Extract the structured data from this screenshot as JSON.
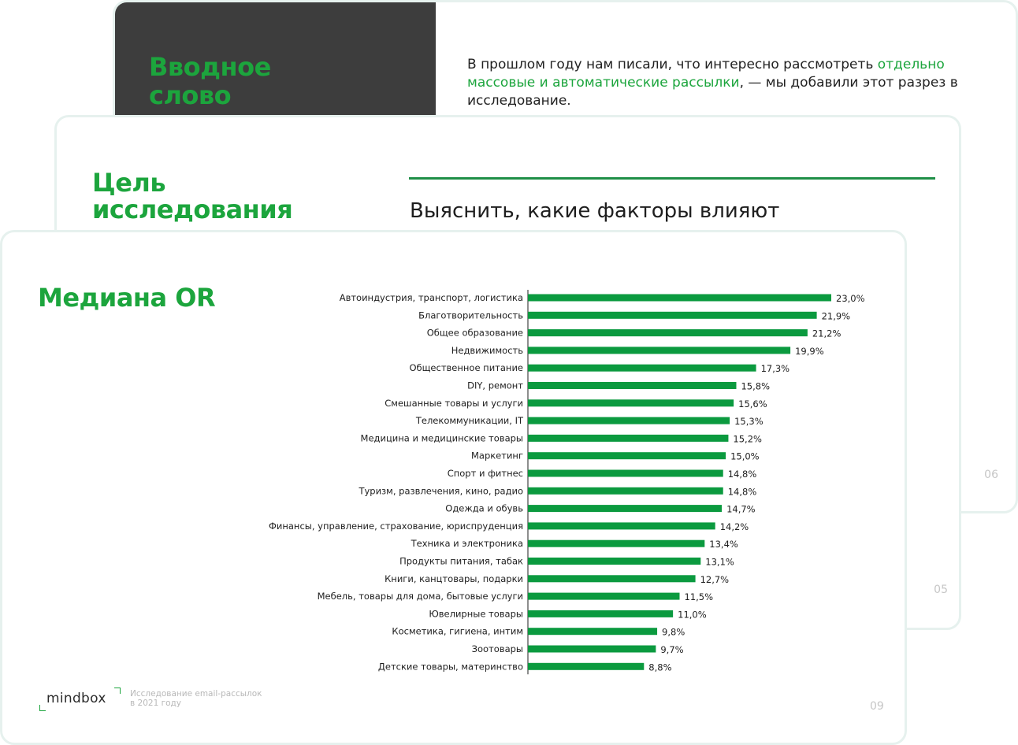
{
  "back_card": {
    "title_line1": "Вводное",
    "title_line2": "слово",
    "text_part1": "В прошлом году нам писали, что интересно рассмотреть ",
    "text_highlight": "отдельно массовые и автоматические рассылки",
    "text_part2": ", — мы добавили этот разрез в исследование.",
    "page_number": "06"
  },
  "mid_card": {
    "title_line1": "Цель",
    "title_line2": "исследования",
    "text": "Выяснить, какие факторы влияют",
    "page_number": "05"
  },
  "front_card": {
    "title": "Медиана OR",
    "page_number": "09",
    "footer": {
      "logo_text": "mindbox",
      "caption_line1": "Исследование email-рассылок",
      "caption_line2": "в 2021 году"
    }
  },
  "colors": {
    "accent_green": "#1ca53d",
    "bar_green": "#0b9a3f",
    "dark_panel": "#3d3d3d",
    "card_border": "#e6f1ee"
  },
  "chart_data": {
    "type": "bar",
    "orientation": "horizontal",
    "categories": [
      "Автоиндустрия, транспорт, логистика",
      "Благотворительность",
      "Общее образование",
      "Недвижимость",
      "Общественное питание",
      "DIY, ремонт",
      "Смешанные товары и услуги",
      "Телекоммуникации, IT",
      "Медицина и медицинские товары",
      "Маркетинг",
      "Спорт и фитнес",
      "Туризм, развлечения, кино, радио",
      "Одежда и обувь",
      "Финансы, управление, страхование, юриспруденция",
      "Техника и электроника",
      "Продукты питания, табак",
      "Книги, канцтовары, подарки",
      "Мебель, товары для дома, бытовые услуги",
      "Ювелирные товары",
      "Косметика, гигиена, интим",
      "Зоотовары",
      "Детские товары, материнство"
    ],
    "values": [
      23.0,
      21.9,
      21.2,
      19.9,
      17.3,
      15.8,
      15.6,
      15.3,
      15.2,
      15.0,
      14.8,
      14.8,
      14.7,
      14.2,
      13.4,
      13.1,
      12.7,
      11.5,
      11.0,
      9.8,
      9.7,
      8.8
    ],
    "labels": [
      "23,0%",
      "21,9%",
      "21,2%",
      "19,9%",
      "17,3%",
      "15,8%",
      "15,6%",
      "15,3%",
      "15,2%",
      "15,0%",
      "14,8%",
      "14,8%",
      "14,7%",
      "14,2%",
      "13,4%",
      "13,1%",
      "12,7%",
      "11,5%",
      "11,0%",
      "9,8%",
      "9,7%",
      "8,8%"
    ],
    "title": "Медиана OR",
    "xlim": [
      0,
      23.0
    ],
    "grid": false,
    "legend": "none"
  }
}
